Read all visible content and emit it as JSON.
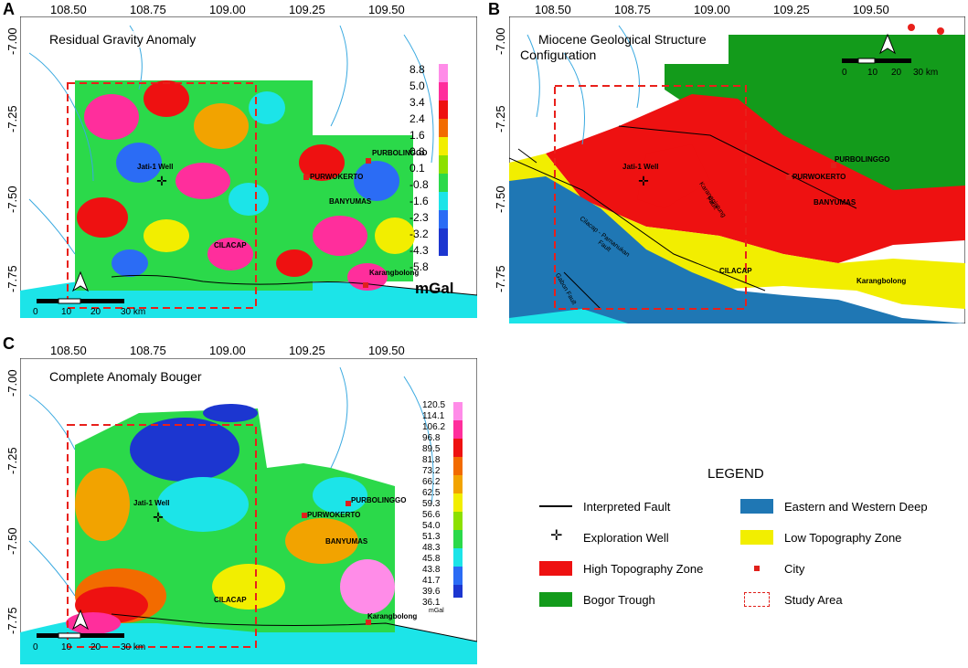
{
  "panels": [
    {
      "letter": "A",
      "title": "Residual Gravity Anomaly",
      "x_ticks": [
        "108.50",
        "108.75",
        "109.00",
        "109.25",
        "109.50"
      ],
      "y_ticks": [
        "-7.00",
        "-7.25",
        "-7.50",
        "-7.75"
      ],
      "colorbar": {
        "labels": [
          "8.8",
          "5.0",
          "3.4",
          "2.4",
          "1.6",
          "0.8",
          "0.1",
          "-0.8",
          "-1.6",
          "-2.3",
          "-3.2",
          "-4.3",
          "-5.8"
        ],
        "unit": "mGal"
      },
      "scale": [
        "0",
        "10",
        "20",
        "30 km"
      ]
    },
    {
      "letter": "B",
      "title_line1": "Miocene Geological Structure",
      "title_line2": "Configuration",
      "x_ticks": [
        "108.50",
        "108.75",
        "109.00",
        "109.25",
        "109.50"
      ],
      "y_ticks": [
        "-7.00",
        "-7.25",
        "-7.50",
        "-7.75"
      ],
      "scale": [
        "0",
        "10",
        "20",
        "30 km"
      ],
      "fault_labels": {
        "cilacap": "Cilacap - Pamanukan",
        "fault": "Fault",
        "karanggintung": "Karanggintung",
        "fault2": "Fault",
        "gabon": "Gabon Fault"
      }
    },
    {
      "letter": "C",
      "title": "Complete Anomaly Bouger",
      "x_ticks": [
        "108.50",
        "108.75",
        "109.00",
        "109.25",
        "109.50"
      ],
      "y_ticks": [
        "-7.00",
        "-7.25",
        "-7.50",
        "-7.75"
      ],
      "colorbar": {
        "labels": [
          "120.5",
          "114.1",
          "106.2",
          "96.8",
          "89.5",
          "81.8",
          "73.2",
          "66.2",
          "62.5",
          "59.3",
          "56.6",
          "54.0",
          "51.3",
          "48.3",
          "45.8",
          "43.8",
          "41.7",
          "39.6",
          "36.1"
        ],
        "unit": "mGal"
      },
      "scale": [
        "0",
        "10",
        "20",
        "30 km"
      ]
    }
  ],
  "places": {
    "jati": "Jati-1 Well",
    "purwokerto": "PURWOKERTO",
    "purbolinggo": "PURBOLINGGO",
    "banyumas": "BANYUMAS",
    "cilacap": "CILACAP",
    "karangbolong": "Karangbolong"
  },
  "legend": {
    "title": "LEGEND",
    "items": [
      {
        "label": "Interpreted Fault",
        "kind": "line"
      },
      {
        "label": "Eastern and Western Deep",
        "kind": "fill",
        "color": "#1f77b4"
      },
      {
        "label": "Exploration Well",
        "kind": "well"
      },
      {
        "label": "Low Topography Zone",
        "kind": "fill",
        "color": "#f2ee00"
      },
      {
        "label": "High Topography Zone",
        "kind": "fill",
        "color": "#ee1111"
      },
      {
        "label": "City",
        "kind": "dot",
        "color": "#e0201b"
      },
      {
        "label": "Bogor Trough",
        "kind": "fill",
        "color": "#139b1b"
      },
      {
        "label": "Study Area",
        "kind": "dashed",
        "color": "#e0201b"
      }
    ]
  },
  "colors": {
    "sea": "#1ce4e8",
    "river": "#39a9e0",
    "study_area": "#e8201b",
    "high_topo": "#ee1111",
    "low_topo": "#f2ee00",
    "deep": "#1f77b4",
    "bogor": "#139b1b"
  }
}
